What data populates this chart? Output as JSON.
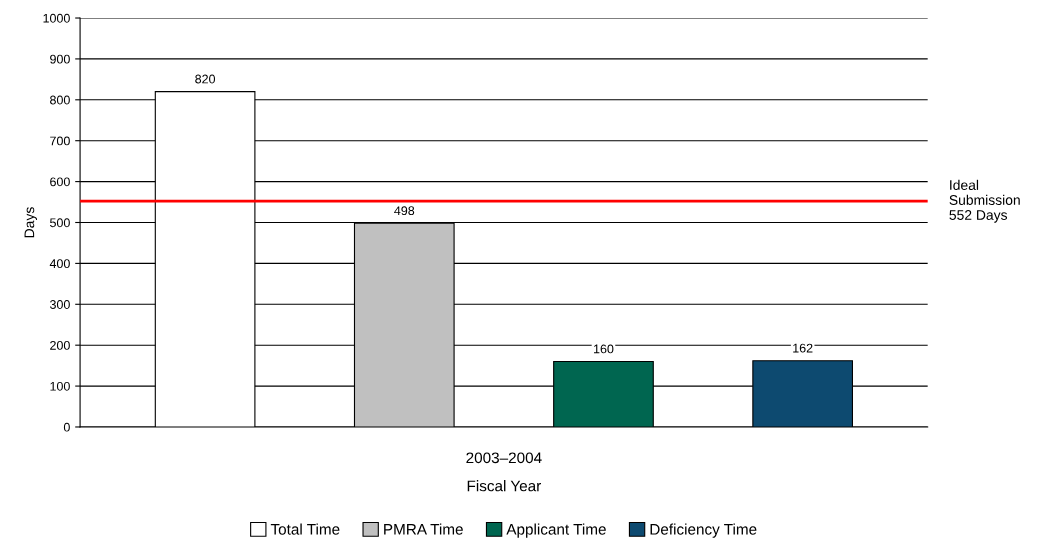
{
  "chart_data": {
    "type": "bar",
    "xlabel": "Fiscal Year",
    "ylabel": "Days",
    "categories": [
      "2003–2004"
    ],
    "series": [
      {
        "name": "Total Time",
        "color": "#ffffff",
        "values": [
          820
        ]
      },
      {
        "name": "PMRA Time",
        "color": "#c0c0c0",
        "values": [
          498
        ]
      },
      {
        "name": "Applicant Time",
        "color": "#006650",
        "values": [
          160
        ]
      },
      {
        "name": "Deficiency Time",
        "color": "#0d4a70",
        "values": [
          162
        ]
      }
    ],
    "ylim": [
      0,
      1000
    ],
    "yticks": [
      0,
      100,
      200,
      300,
      400,
      500,
      600,
      700,
      800,
      900,
      1000
    ],
    "ref_lines": [
      {
        "axis": "y",
        "value": 552,
        "label": "Ideal\nSubmission\n552 Days",
        "color": "#ff0000",
        "line_style": "solid"
      }
    ],
    "data_labels": true,
    "grid": "y",
    "legend": "bottom"
  }
}
